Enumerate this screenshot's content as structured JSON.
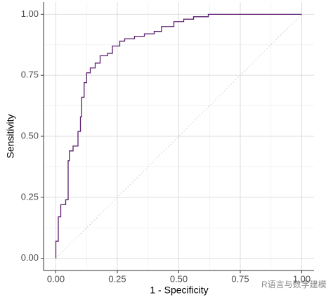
{
  "chart_data": {
    "type": "line",
    "x_label": "1 - Specificity",
    "y_label": "Sensitivity",
    "watermark": "R语言与数学建模",
    "series": [
      {
        "color": "#5a1d6e",
        "x": [
          0,
          0,
          0.01,
          0.01,
          0.02,
          0.02,
          0.04,
          0.04,
          0.05,
          0.05,
          0.055,
          0.055,
          0.07,
          0.07,
          0.09,
          0.09,
          0.1,
          0.1,
          0.105,
          0.105,
          0.115,
          0.115,
          0.125,
          0.125,
          0.14,
          0.14,
          0.16,
          0.16,
          0.18,
          0.18,
          0.21,
          0.21,
          0.23,
          0.23,
          0.26,
          0.26,
          0.28,
          0.28,
          0.32,
          0.32,
          0.36,
          0.36,
          0.4,
          0.4,
          0.43,
          0.43,
          0.48,
          0.48,
          0.52,
          0.52,
          0.56,
          0.56,
          0.62,
          0.62,
          1.0
        ],
        "values": [
          0,
          0.07,
          0.07,
          0.17,
          0.17,
          0.22,
          0.22,
          0.24,
          0.24,
          0.4,
          0.4,
          0.44,
          0.44,
          0.46,
          0.46,
          0.52,
          0.52,
          0.58,
          0.58,
          0.66,
          0.66,
          0.72,
          0.72,
          0.76,
          0.76,
          0.78,
          0.78,
          0.8,
          0.8,
          0.83,
          0.83,
          0.84,
          0.84,
          0.87,
          0.87,
          0.89,
          0.89,
          0.9,
          0.9,
          0.91,
          0.91,
          0.92,
          0.92,
          0.93,
          0.93,
          0.95,
          0.95,
          0.97,
          0.97,
          0.98,
          0.98,
          0.99,
          0.99,
          1.0,
          1.0
        ]
      }
    ],
    "xlim": [
      -0.05,
      1.05
    ],
    "ylim": [
      -0.05,
      1.05
    ],
    "xticks": [
      {
        "value": 0,
        "label": "0.00"
      },
      {
        "value": 0.25,
        "label": "0.25"
      },
      {
        "value": 0.5,
        "label": "0.50"
      },
      {
        "value": 0.75,
        "label": "0.75"
      },
      {
        "value": 1,
        "label": "1.00"
      }
    ],
    "yticks": [
      {
        "value": 0,
        "label": "0.00"
      },
      {
        "value": 0.25,
        "label": "0.25"
      },
      {
        "value": 0.5,
        "label": "0.50"
      },
      {
        "value": 0.75,
        "label": "0.75"
      },
      {
        "value": 1,
        "label": "1.00"
      }
    ],
    "grid": true,
    "minor_grid": true
  }
}
